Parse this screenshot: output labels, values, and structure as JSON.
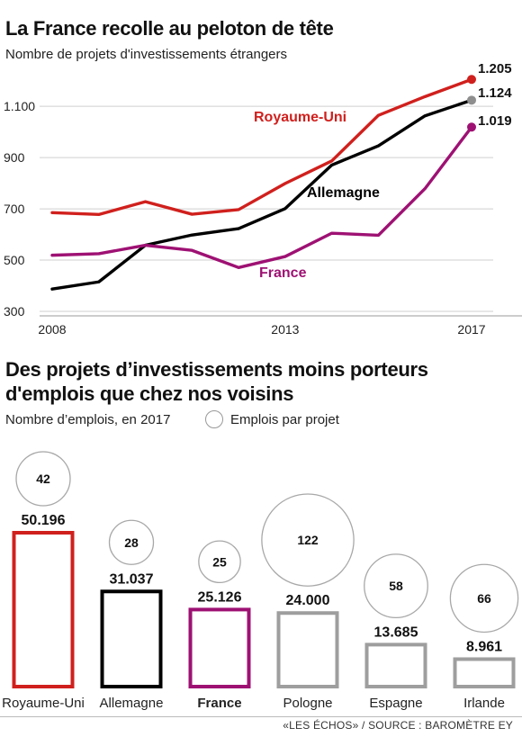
{
  "chart_data": [
    {
      "type": "line",
      "title": "La France recolle au peloton de tête",
      "subtitle": "Nombre de projets d'investissements étrangers",
      "x": [
        2008,
        2009,
        2010,
        2011,
        2012,
        2013,
        2014,
        2015,
        2016,
        2017
      ],
      "x_tick_labels": [
        "2008",
        "2013",
        "2017"
      ],
      "y_tick_labels": [
        "300",
        "500",
        "700",
        "900",
        "1.100"
      ],
      "ylim": [
        300,
        1220
      ],
      "grid": "horizontal",
      "series": [
        {
          "name": "Royaume-Uni",
          "color": "#d0201d",
          "values": [
            685,
            678,
            728,
            679,
            697,
            799,
            887,
            1065,
            1138,
            1205
          ],
          "end_label": "1.205"
        },
        {
          "name": "Allemagne",
          "color": "#000000",
          "values": [
            387,
            415,
            558,
            598,
            623,
            701,
            871,
            946,
            1063,
            1124
          ],
          "end_label": "1.124"
        },
        {
          "name": "France",
          "color": "#9e1173",
          "values": [
            519,
            525,
            558,
            538,
            471,
            514,
            605,
            597,
            779,
            1019
          ],
          "end_label": "1.019"
        }
      ]
    },
    {
      "type": "bar",
      "title": "Des projets d’investissements moins porteurs d'emplois que chez nos voisins",
      "subtitle": "Nombre d’emplois, en 2017",
      "legend_bubble": "Emplois par projet",
      "categories": [
        "Royaume-Uni",
        "Allemagne",
        "France",
        "Pologne",
        "Espagne",
        "Irlande"
      ],
      "values": [
        50196,
        31037,
        25126,
        24000,
        13685,
        8961
      ],
      "value_labels": [
        "50.196",
        "31.037",
        "25.126",
        "24.000",
        "13.685",
        "8.961"
      ],
      "jobs_per_project": [
        42,
        28,
        25,
        122,
        58,
        66
      ],
      "colors": [
        "#d0201d",
        "#000000",
        "#9e1173",
        "#9e9e9e",
        "#9e9e9e",
        "#9e9e9e"
      ],
      "highlight": "France"
    }
  ],
  "footer": "«LES ÉCHOS» / SOURCE : BAROMÈTRE EY"
}
